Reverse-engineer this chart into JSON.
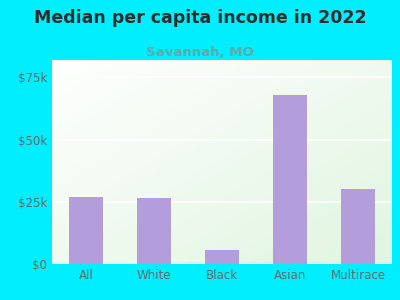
{
  "title": "Median per capita income in 2022",
  "subtitle": "Savannah, MO",
  "categories": [
    "All",
    "White",
    "Black",
    "Asian",
    "Multirace"
  ],
  "values": [
    27000,
    26500,
    5500,
    68000,
    30000
  ],
  "bar_color": "#b39ddb",
  "background_color": "#00eeff",
  "title_color": "#2d2d2d",
  "subtitle_color": "#5aabaa",
  "tick_label_color": "#666666",
  "yticks": [
    0,
    25000,
    50000,
    75000
  ],
  "ytick_labels": [
    "$0",
    "$25k",
    "$50k",
    "$75k"
  ],
  "ylim": [
    0,
    82000
  ],
  "title_fontsize": 12.5,
  "subtitle_fontsize": 9.5,
  "tick_fontsize": 8.5,
  "plot_bg_color_top_left": "#f0faf0",
  "plot_bg_color_bottom_right": "#e8f5e9"
}
